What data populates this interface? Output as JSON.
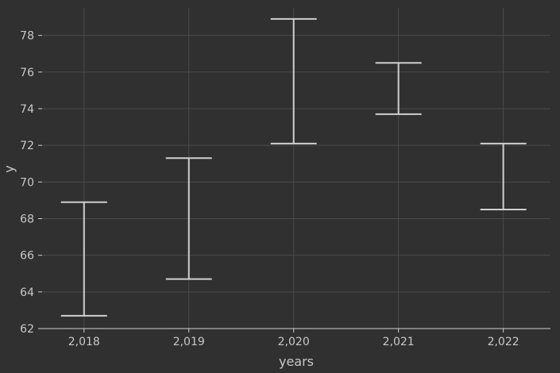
{
  "chart_data": {
    "type": "errorbar",
    "title": "",
    "xlabel": "years",
    "ylabel": "y",
    "x": [
      2018,
      2019,
      2020,
      2021,
      2022
    ],
    "x_tick_labels": [
      "2,018",
      "2,019",
      "2,020",
      "2,021",
      "2,022"
    ],
    "series": [
      {
        "low": [
          62.7,
          64.7,
          72.1,
          73.7,
          68.5
        ],
        "high": [
          68.9,
          71.3,
          78.9,
          76.5,
          72.1
        ]
      }
    ],
    "xlim": [
      2017.6,
      2022.45
    ],
    "ylim": [
      62,
      79.5
    ],
    "y_ticks": [
      62,
      64,
      66,
      68,
      70,
      72,
      74,
      76,
      78
    ],
    "grid": true,
    "colors": {
      "background": "#303030",
      "grid": "#4a4a4a",
      "marks": "#cfcfcf",
      "text": "#c8c8c8"
    }
  }
}
